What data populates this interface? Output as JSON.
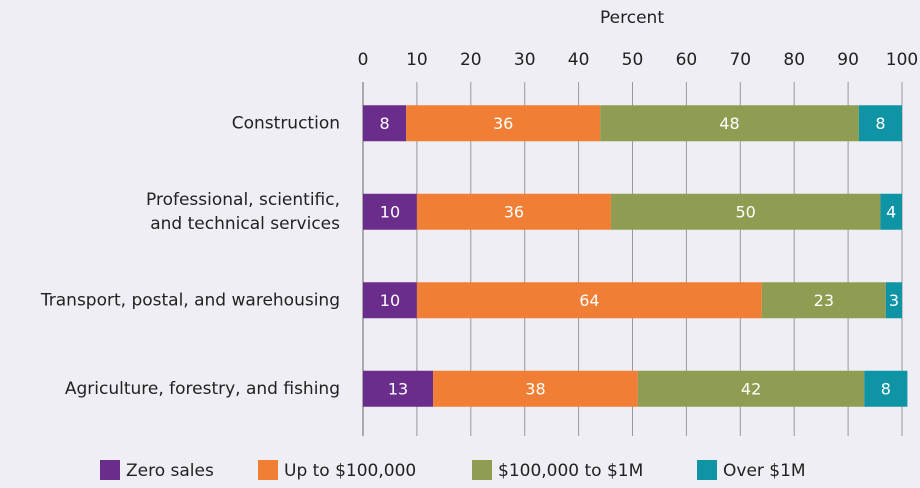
{
  "chart_data": {
    "type": "stacked_barh",
    "xlabel": "Percent",
    "categories": [
      "Construction",
      "Professional, scientific,\nand technical services",
      "Transport, postal, and warehousing",
      "Agriculture, forestry, and fishing"
    ],
    "series": [
      {
        "name": "Zero sales",
        "color": "#6b2d8c",
        "values": [
          8,
          10,
          10,
          13
        ]
      },
      {
        "name": "Up to $100,000",
        "color": "#f07f35",
        "values": [
          36,
          36,
          64,
          38
        ]
      },
      {
        "name": "$100,000 to $1M",
        "color": "#8f9d52",
        "values": [
          48,
          50,
          23,
          42
        ]
      },
      {
        "name": "Over $1M",
        "color": "#0f94a6",
        "values": [
          8,
          4,
          3,
          8
        ]
      }
    ],
    "xlim": [
      0,
      100
    ],
    "xticks": [
      0,
      10,
      20,
      30,
      40,
      50,
      60,
      70,
      80,
      90,
      100
    ],
    "grid": true,
    "legend": "bottom"
  }
}
